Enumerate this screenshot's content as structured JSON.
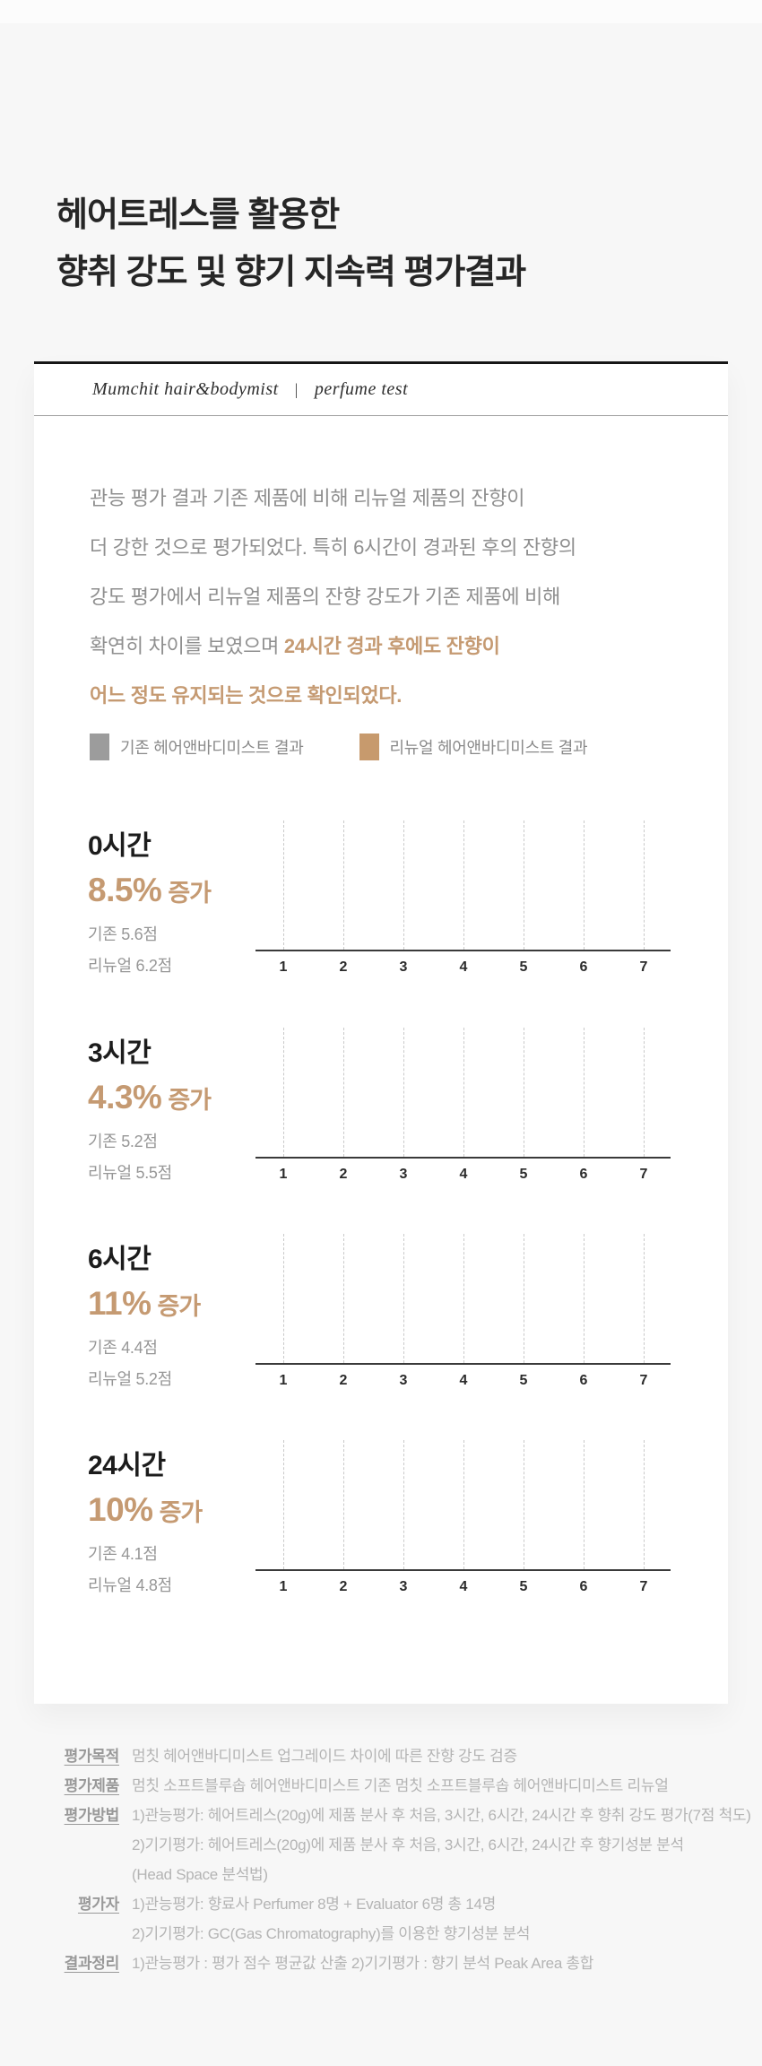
{
  "palette": {
    "background": "#f7f7f7",
    "card_bg": "#ffffff",
    "accent_tan": "#c59a72",
    "legend_gray": "#9c9c9c",
    "legend_tan": "#c79a6d",
    "axis_color": "#3a3a3a",
    "gridline_color": "#c9c9c9"
  },
  "title": {
    "line1": "헤어트레스를 활용한",
    "line2": "향취 강도 및 향기 지속력 평가결과"
  },
  "card_header": {
    "brand": "Mumchit hair&bodymist",
    "divider": "|",
    "label": "perfume test"
  },
  "paragraph": {
    "line1": "관능 평가 결과 기존 제품에 비해 리뉴얼 제품의 잔향이",
    "line2": "더 강한 것으로 평가되었다. 특히 6시간이 경과된 후의 잔향의",
    "line3": "강도 평가에서 리뉴얼 제품의 잔향 강도가 기존 제품에 비해",
    "line4_normal": "확연히 차이를 보였으며 ",
    "line4_highlight": "24시간 경과 후에도 잔향이",
    "line5_highlight": "어느 정도 유지되는 것으로 확인되었다."
  },
  "legend": {
    "items": [
      {
        "label": "기존 헤어앤바디미스트 결과",
        "color": "#9c9c9c"
      },
      {
        "label": "리뉴얼 헤어앤바디미스트 결과",
        "color": "#c79a6d"
      }
    ]
  },
  "axis_ticks": [
    "1",
    "2",
    "3",
    "4",
    "5",
    "6",
    "7"
  ],
  "charts": [
    {
      "time": "0시간",
      "percent": "8.5%",
      "increase": "증가",
      "old": "기존 5.6점",
      "renewal": "리뉴얼 6.2점"
    },
    {
      "time": "3시간",
      "percent": "4.3%",
      "increase": "증가",
      "old": "기존 5.2점",
      "renewal": "리뉴얼 5.5점"
    },
    {
      "time": "6시간",
      "percent": "11%",
      "increase": "증가",
      "old": "기존 4.4점",
      "renewal": "리뉴얼 5.2점"
    },
    {
      "time": "24시간",
      "percent": "10%",
      "increase": "증가",
      "old": "기존 4.1점",
      "renewal": "리뉴얼 4.8점"
    }
  ],
  "chart_data": [
    {
      "type": "bar",
      "orientation": "horizontal",
      "title": "0시간",
      "subtitle": "8.5% 증가",
      "series": [
        {
          "name": "기존 헤어앤바디미스트",
          "value": 5.6
        },
        {
          "name": "리뉴얼 헤어앤바디미스트",
          "value": 6.2
        }
      ],
      "x_ticks": [
        1,
        2,
        3,
        4,
        5,
        6,
        7
      ],
      "xlim": [
        0,
        7.5
      ],
      "grid": "vertical-dashed",
      "bars_rendered": false,
      "legend_position": "above-charts"
    },
    {
      "type": "bar",
      "orientation": "horizontal",
      "title": "3시간",
      "subtitle": "4.3% 증가",
      "series": [
        {
          "name": "기존 헤어앤바디미스트",
          "value": 5.2
        },
        {
          "name": "리뉴얼 헤어앤바디미스트",
          "value": 5.5
        }
      ],
      "x_ticks": [
        1,
        2,
        3,
        4,
        5,
        6,
        7
      ],
      "xlim": [
        0,
        7.5
      ],
      "grid": "vertical-dashed",
      "bars_rendered": false,
      "legend_position": "above-charts"
    },
    {
      "type": "bar",
      "orientation": "horizontal",
      "title": "6시간",
      "subtitle": "11% 증가",
      "series": [
        {
          "name": "기존 헤어앤바디미스트",
          "value": 4.4
        },
        {
          "name": "리뉴얼 헤어앤바디미스트",
          "value": 5.2
        }
      ],
      "x_ticks": [
        1,
        2,
        3,
        4,
        5,
        6,
        7
      ],
      "xlim": [
        0,
        7.5
      ],
      "grid": "vertical-dashed",
      "bars_rendered": false,
      "legend_position": "above-charts"
    },
    {
      "type": "bar",
      "orientation": "horizontal",
      "title": "24시간",
      "subtitle": "10% 증가",
      "series": [
        {
          "name": "기존 헤어앤바디미스트",
          "value": 4.1
        },
        {
          "name": "리뉴얼 헤어앤바디미스트",
          "value": 4.8
        }
      ],
      "x_ticks": [
        1,
        2,
        3,
        4,
        5,
        6,
        7
      ],
      "xlim": [
        0,
        7.5
      ],
      "grid": "vertical-dashed",
      "bars_rendered": false,
      "legend_position": "above-charts"
    }
  ],
  "footer": {
    "rows": [
      {
        "label": "평가목적",
        "line1": "멈칫 헤어앤바디미스트 업그레이드 차이에 따른 잔향 강도 검증"
      },
      {
        "label": "평가제품",
        "line1": "멈칫 소프트블루솝 헤어앤바디미스트 기존 멈칫 소프트블루솝 헤어앤바디미스트 리뉴얼"
      },
      {
        "label": "평가방법",
        "line1": "1)관능평가: 헤어트레스(20g)에 제품 분사 후 처음, 3시간, 6시간, 24시간 후 향취 강도 평가(7점 척도)",
        "line2": "2)기기평가: 헤어트레스(20g)에 제품 분사 후 처음, 3시간, 6시간, 24시간 후 향기성분 분석",
        "line3": "(Head Space 분석법)"
      },
      {
        "label": "평가자",
        "line1": "1)관능평가: 향료사 Perfumer 8명 + Evaluator 6명 총 14명",
        "line2": "2)기기평가: GC(Gas Chromatography)를 이용한 향기성분 분석"
      },
      {
        "label": "결과정리",
        "line1": "1)관능평가 : 평가 점수 평균값 산출  2)기기평가 : 향기 분석 Peak Area 총합"
      }
    ]
  }
}
